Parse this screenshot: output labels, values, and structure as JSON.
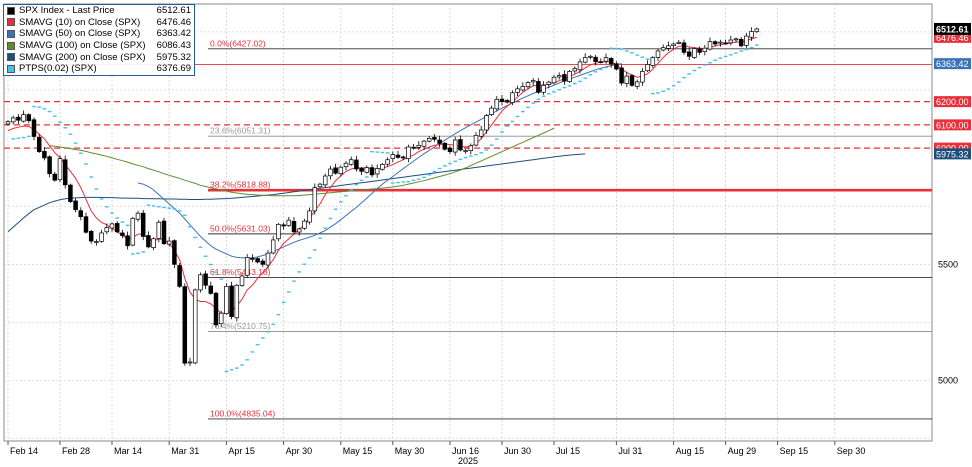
{
  "legend": {
    "items": [
      {
        "name": "SPX Index - Last Price",
        "value": "6512.61",
        "color": "#000000"
      },
      {
        "name": "SMAVG (10)  on Close (SPX)",
        "value": "6476.46",
        "color": "#e8303a"
      },
      {
        "name": "SMAVG (50)  on Close (SPX)",
        "value": "6363.42",
        "color": "#3a73b8"
      },
      {
        "name": "SMAVG (100)  on Close (SPX)",
        "value": "6086.43",
        "color": "#5e8c2e"
      },
      {
        "name": "SMAVG (200)  on Close (SPX)",
        "value": "5975.32",
        "color": "#1c4f7d"
      },
      {
        "name": "PTPS(0.02)  (SPX)",
        "value": "6376.69",
        "color": "#44c0ee"
      }
    ]
  },
  "chart_data": {
    "type": "candlestick",
    "x_ticks": [
      {
        "label": "Feb 14",
        "i": 0
      },
      {
        "label": "Feb 28",
        "i": 10
      },
      {
        "label": "Mar 14",
        "i": 20
      },
      {
        "label": "Mar 31",
        "i": 31
      },
      {
        "label": "Apr 15",
        "i": 42
      },
      {
        "label": "Apr 30",
        "i": 53
      },
      {
        "label": "May 15",
        "i": 64
      },
      {
        "label": "May 30",
        "i": 74
      },
      {
        "label": "Jun 16",
        "i": 85
      },
      {
        "label": "Jun 30",
        "i": 95
      },
      {
        "label": "Jul 15",
        "i": 105
      },
      {
        "label": "Jul 31",
        "i": 117
      },
      {
        "label": "Aug 15",
        "i": 128
      },
      {
        "label": "Aug 29",
        "i": 138
      },
      {
        "label": "Sep 15",
        "i": 148
      },
      {
        "label": "Sep 30",
        "i": 159
      }
    ],
    "year_label": "2025",
    "y_ticks": [
      5000,
      5500
    ],
    "ylim": [
      4740,
      6620
    ],
    "last_price": {
      "label": "6512.61",
      "value": 6512.61
    },
    "right_labels": [
      {
        "label": "6476.46",
        "value": 6476.46,
        "color": "#e8303a"
      },
      {
        "label": "6363.42",
        "value": 6363.42,
        "color": "#3a73b8"
      },
      {
        "label": "6200.00",
        "value": 6200,
        "color": "#e8303a"
      },
      {
        "label": "6100.00",
        "value": 6100,
        "color": "#e8303a"
      },
      {
        "label": "6000.00",
        "value": 6000,
        "color": "#e8303a"
      },
      {
        "label": "5975.32",
        "value": 5975.32,
        "color": "#1c4f7d"
      }
    ],
    "fib_levels": [
      {
        "label": "0.0%(6427.02)",
        "value": 6427.02
      },
      {
        "label": "23.6%(6051.31)",
        "value": 6051.31
      },
      {
        "label": "38.2%(5818.88)",
        "value": 5818.88
      },
      {
        "label": "50.0%(5631.03)",
        "value": 5631.03
      },
      {
        "label": "61.8%(5443.18)",
        "value": 5443.18
      },
      {
        "label": "76.4%(5210.75)",
        "value": 5210.75
      },
      {
        "label": "100.0%(4835.04)",
        "value": 4835.04
      }
    ],
    "horizontal_lines": [
      {
        "value": 6360
      },
      {
        "value": 6200,
        "dashed": true
      },
      {
        "value": 6100,
        "dashed": true
      },
      {
        "value": 6000,
        "dashed": true
      }
    ],
    "closes": [
      6114,
      6130,
      6120,
      6144,
      6118,
      6050,
      5985,
      5958,
      5890,
      5862,
      5955,
      5842,
      5770,
      5735,
      5705,
      5638,
      5600,
      5598,
      5635,
      5658,
      5674,
      5640,
      5624,
      5580,
      5698,
      5720,
      5620,
      5575,
      5610,
      5681,
      5589,
      5600,
      5500,
      5405,
      5075,
      5080,
      5390,
      5455,
      5410,
      5375,
      5240,
      5290,
      5405,
      5275,
      5410,
      5450,
      5530,
      5525,
      5510,
      5500,
      5548,
      5605,
      5672,
      5665,
      5690,
      5640,
      5652,
      5686,
      5730,
      5830,
      5845,
      5880,
      5910,
      5892,
      5918,
      5935,
      5950,
      5910,
      5900,
      5916,
      5885,
      5912,
      5930,
      5950,
      5972,
      5960,
      5960,
      6005,
      6000,
      6012,
      6030,
      6042,
      6038,
      6020,
      5995,
      5985,
      6035,
      5992,
      5990,
      6010,
      6055,
      6078,
      6140,
      6172,
      6210,
      6200,
      6198,
      6238,
      6255,
      6265,
      6282,
      6291,
      6240,
      6270,
      6284,
      6305,
      6312,
      6288,
      6330,
      6342,
      6371,
      6390,
      6395,
      6372,
      6370,
      6389,
      6362,
      6340,
      6280,
      6310,
      6270,
      6285,
      6330,
      6360,
      6390,
      6418,
      6432,
      6440,
      6448,
      6455,
      6412,
      6395,
      6428,
      6412,
      6430,
      6458,
      6448,
      6456,
      6452,
      6465,
      6470,
      6440,
      6482,
      6502,
      6512.61
    ],
    "sma10": [
      6075,
      6085,
      6090,
      6095,
      6093,
      6080,
      6060,
      6040,
      6010,
      5980,
      5960,
      5930,
      5900,
      5870,
      5830,
      5780,
      5730,
      5700,
      5680,
      5670,
      5655,
      5640,
      5625,
      5610,
      5615,
      5630,
      5630,
      5610,
      5600,
      5610,
      5605,
      5590,
      5560,
      5520,
      5440,
      5380,
      5350,
      5340,
      5340,
      5330,
      5310,
      5290,
      5290,
      5300,
      5320,
      5350,
      5390,
      5410,
      5440,
      5465,
      5490,
      5520,
      5560,
      5590,
      5610,
      5630,
      5650,
      5670,
      5700,
      5730,
      5760,
      5800,
      5830,
      5860,
      5880,
      5900,
      5910,
      5915,
      5915,
      5915,
      5910,
      5910,
      5915,
      5920,
      5930,
      5940,
      5950,
      5960,
      5970,
      5985,
      5995,
      6005,
      6012,
      6015,
      6018,
      6015,
      6012,
      6008,
      6005,
      6008,
      6020,
      6040,
      6070,
      6100,
      6130,
      6160,
      6180,
      6200,
      6220,
      6240,
      6255,
      6268,
      6270,
      6272,
      6275,
      6282,
      6290,
      6298,
      6308,
      6318,
      6330,
      6345,
      6358,
      6365,
      6370,
      6372,
      6370,
      6360,
      6340,
      6325,
      6315,
      6305,
      6310,
      6320,
      6340,
      6365,
      6390,
      6410,
      6425,
      6438,
      6440,
      6435,
      6432,
      6430,
      6428,
      6432,
      6440,
      6445,
      6448,
      6452,
      6456,
      6458,
      6462,
      6470,
      6476.46
    ],
    "sma50_from": 25,
    "sma50": [
      5850,
      5845,
      5835,
      5820,
      5800,
      5780,
      5760,
      5740,
      5720,
      5695,
      5670,
      5645,
      5620,
      5600,
      5580,
      5565,
      5555,
      5545,
      5535,
      5530,
      5528,
      5526,
      5528,
      5532,
      5538,
      5545,
      5555,
      5565,
      5575,
      5585,
      5595,
      5603,
      5610,
      5617,
      5625,
      5635,
      5645,
      5660,
      5675,
      5692,
      5710,
      5728,
      5745,
      5765,
      5785,
      5805,
      5825,
      5845,
      5862,
      5878,
      5895,
      5912,
      5928,
      5944,
      5960,
      5976,
      5990,
      6005,
      6020,
      6034,
      6048,
      6062,
      6075,
      6088,
      6100,
      6112,
      6124,
      6136,
      6148,
      6160,
      6172,
      6183,
      6194,
      6205,
      6215,
      6225,
      6235,
      6244,
      6253,
      6262,
      6271,
      6280,
      6289,
      6297,
      6305,
      6313,
      6321,
      6329,
      6337,
      6344,
      6350,
      6355,
      6360,
      6363.42
    ],
    "sma100_from": 8,
    "sma100": [
      6010,
      6008,
      6005,
      6002,
      5998,
      5994,
      5990,
      5986,
      5980,
      5975,
      5970,
      5965,
      5958,
      5952,
      5946,
      5940,
      5932,
      5926,
      5920,
      5912,
      5905,
      5898,
      5890,
      5883,
      5876,
      5870,
      5862,
      5855,
      5848,
      5840,
      5835,
      5829,
      5825,
      5820,
      5815,
      5810,
      5807,
      5804,
      5801,
      5800,
      5798,
      5797,
      5796,
      5795,
      5795,
      5795,
      5795,
      5795,
      5796,
      5798,
      5800,
      5802,
      5804,
      5806,
      5808,
      5810,
      5812,
      5814,
      5816,
      5818,
      5820,
      5822,
      5824,
      5826,
      5828,
      5830,
      5833,
      5836,
      5840,
      5845,
      5850,
      5855,
      5860,
      5866,
      5872,
      5878,
      5884,
      5890,
      5898,
      5906,
      5915,
      5925,
      5935,
      5945,
      5955,
      5965,
      5975,
      5985,
      5995,
      6005,
      6015,
      6025,
      6035,
      6045,
      6055,
      6065,
      6075,
      6086.43
    ],
    "sma200": [
      5640,
      5660,
      5680,
      5700,
      5718,
      5735,
      5745,
      5755,
      5765,
      5772,
      5778,
      5782,
      5784,
      5786,
      5787,
      5788,
      5788,
      5788,
      5788,
      5787,
      5787,
      5786,
      5785,
      5785,
      5784,
      5784,
      5783,
      5783,
      5782,
      5782,
      5781,
      5781,
      5781,
      5780,
      5780,
      5779,
      5779,
      5779,
      5780,
      5780,
      5781,
      5782,
      5783,
      5784,
      5786,
      5788,
      5790,
      5792,
      5794,
      5796,
      5798,
      5800,
      5803,
      5806,
      5809,
      5812,
      5815,
      5818,
      5821,
      5824,
      5827,
      5830,
      5833,
      5836,
      5839,
      5842,
      5845,
      5848,
      5851,
      5854,
      5857,
      5860,
      5863,
      5866,
      5869,
      5872,
      5875,
      5878,
      5881,
      5884,
      5887,
      5890,
      5893,
      5896,
      5899,
      5902,
      5905,
      5908,
      5911,
      5914,
      5917,
      5920,
      5923,
      5926,
      5929,
      5932,
      5935,
      5938,
      5941,
      5944,
      5947,
      5950,
      5953,
      5956,
      5959,
      5962,
      5965,
      5968,
      5970,
      5972,
      5974,
      5975.32
    ]
  }
}
